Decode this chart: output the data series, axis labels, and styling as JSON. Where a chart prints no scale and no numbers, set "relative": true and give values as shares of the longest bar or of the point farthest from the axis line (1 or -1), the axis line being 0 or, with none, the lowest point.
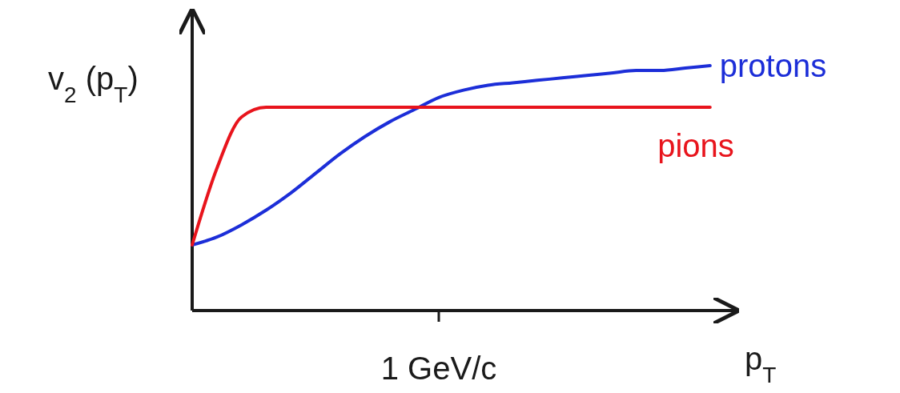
{
  "chart_data": {
    "type": "line",
    "relative": true,
    "ylabel": "v$_{2}$ (p$_{T}$)",
    "xlabel": "p$_{T}$",
    "categories": [
      null,
      null,
      null,
      null,
      null,
      null,
      null,
      null,
      null,
      null,
      null,
      null,
      null,
      null,
      null,
      null,
      null,
      null,
      null,
      null,
      null,
      null
    ],
    "annotations": [
      "1 GeV/c"
    ],
    "series": [
      {
        "name": "protons",
        "color": "#1c2ed8",
        "values": [
          0.268,
          0.3,
          0.35,
          0.41,
          0.48,
          0.56,
          0.64,
          0.71,
          0.77,
          0.82,
          0.87,
          0.9,
          0.92,
          0.93,
          0.94,
          0.95,
          0.96,
          0.97,
          0.98,
          0.98,
          0.99,
          1
        ]
      },
      {
        "name": "pions",
        "color": "#e8141c",
        "values": [
          0.268,
          0.58,
          0.79,
          0.83,
          0.83,
          0.83,
          0.83,
          0.83,
          0.83,
          0.83,
          0.83,
          0.83,
          0.83,
          0.83,
          0.83,
          0.83,
          0.83,
          0.83,
          0.83,
          0.83,
          0.83,
          0.83
        ]
      }
    ],
    "grid": false,
    "legend": false,
    "marker": "none",
    "line_style": "solid"
  }
}
